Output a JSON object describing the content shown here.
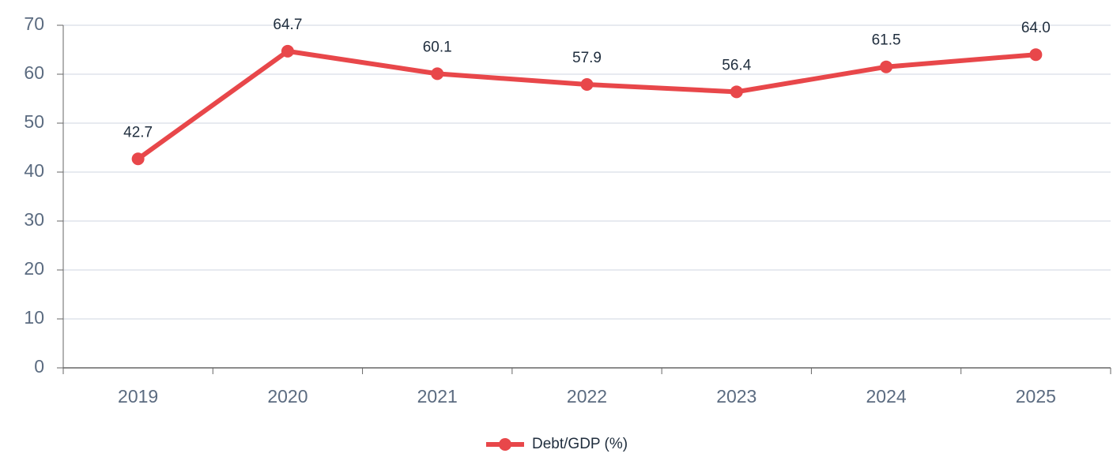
{
  "chart_data": {
    "type": "line",
    "categories": [
      "2019",
      "2020",
      "2021",
      "2022",
      "2023",
      "2024",
      "2025"
    ],
    "series": [
      {
        "name": "Debt/GDP (%)",
        "color": "#e8474a",
        "values": [
          42.7,
          64.7,
          60.1,
          57.9,
          56.4,
          61.5,
          64.0
        ],
        "value_labels": [
          "42.7",
          "64.7",
          "60.1",
          "57.9",
          "56.4",
          "61.5",
          "64.0"
        ]
      }
    ],
    "ylim": [
      0,
      70
    ],
    "yticks": [
      0,
      10,
      20,
      30,
      40,
      50,
      60,
      70
    ],
    "grid": true,
    "legend": "bottom"
  }
}
